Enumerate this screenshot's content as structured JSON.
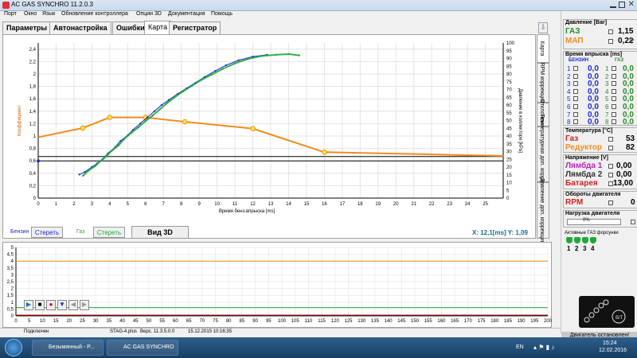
{
  "window": {
    "title": "AC GAS SYNCHRO  11.2.0.3"
  },
  "menu": [
    "Порт",
    "Окно",
    "Язык",
    "Обновление контроллера",
    "Опции 3D",
    "Документация",
    "Помощь"
  ],
  "tabs": [
    "Параметры",
    "Автонастройка",
    "Ошибки",
    "Карта",
    "Регистратор"
  ],
  "side_tabs": [
    "Карта",
    "RPM коррекция",
    "Отклонение",
    "Температурная доп. коррекция",
    "Давление доп. коррекции"
  ],
  "chart_toolbar": {
    "petrol_label": "Бензин",
    "petrol_clear": "Стереть",
    "gas_label": "Газ",
    "gas_clear": "Стереть",
    "view3d": "Вид 3D",
    "readout": "X: 12,1[ms]  Y: 1,09"
  },
  "chart_data": {
    "type": "scatter",
    "xlabel": "Время бенз.впрыска [ms]",
    "ylabel_left": "Коэффициент",
    "ylabel_right": "Давление в коллекторе [kPa]",
    "xlim": [
      0,
      26
    ],
    "ylim_left": [
      0,
      2.5
    ],
    "ylim_right": [
      0,
      100
    ],
    "x_ticks": [
      "0",
      "1",
      "2",
      "3",
      "4",
      "5",
      "6",
      "7",
      "8",
      "9",
      "10",
      "11",
      "12",
      "13",
      "14",
      "15",
      "16",
      "17",
      "18",
      "19",
      "20",
      "21",
      "22",
      "23",
      "24",
      "25"
    ],
    "y_left_ticks": [
      "0",
      "0,2",
      "0,4",
      "0,6",
      "0,8",
      "1",
      "1,2",
      "1,4",
      "1,6",
      "1,8",
      "2",
      "2,2",
      "2,4"
    ],
    "y_right_ticks": [
      "0",
      "5",
      "10",
      "15",
      "20",
      "25",
      "30",
      "35",
      "40",
      "45",
      "50",
      "55",
      "60",
      "65",
      "70",
      "75",
      "80",
      "85",
      "90",
      "95",
      "100"
    ],
    "series": [
      {
        "type": "line",
        "color": "#f28c1e",
        "points": [
          [
            0,
            0.98
          ],
          [
            2.5,
            1.13
          ],
          [
            4,
            1.3
          ],
          [
            6,
            1.3
          ],
          [
            8.2,
            1.23
          ],
          [
            12,
            1.12
          ],
          [
            16,
            0.74
          ],
          [
            26,
            0.68
          ]
        ]
      },
      {
        "type": "scatter",
        "color": "#1a2bd0",
        "points": [
          [
            2.3,
            0.38
          ],
          [
            2.6,
            0.42
          ],
          [
            3.0,
            0.5
          ],
          [
            3.3,
            0.56
          ],
          [
            3.6,
            0.63
          ],
          [
            3.9,
            0.72
          ],
          [
            4.3,
            0.82
          ],
          [
            4.6,
            0.92
          ],
          [
            5.0,
            1.01
          ],
          [
            5.3,
            1.1
          ],
          [
            5.7,
            1.2
          ],
          [
            6.1,
            1.3
          ],
          [
            6.5,
            1.4
          ],
          [
            6.9,
            1.5
          ],
          [
            7.3,
            1.58
          ],
          [
            7.8,
            1.68
          ],
          [
            8.3,
            1.77
          ],
          [
            8.8,
            1.86
          ],
          [
            9.3,
            1.95
          ],
          [
            9.9,
            2.05
          ],
          [
            10.5,
            2.14
          ],
          [
            11.2,
            2.22
          ],
          [
            12.0,
            2.28
          ],
          [
            12.8,
            2.31
          ]
        ]
      },
      {
        "type": "scatter",
        "color": "#1fa83a",
        "points": [
          [
            2.5,
            0.36
          ],
          [
            2.8,
            0.44
          ],
          [
            3.2,
            0.52
          ],
          [
            3.5,
            0.6
          ],
          [
            3.8,
            0.67
          ],
          [
            4.1,
            0.76
          ],
          [
            4.5,
            0.85
          ],
          [
            4.8,
            0.95
          ],
          [
            5.2,
            1.05
          ],
          [
            5.6,
            1.14
          ],
          [
            6.0,
            1.24
          ],
          [
            6.4,
            1.33
          ],
          [
            6.8,
            1.43
          ],
          [
            7.2,
            1.53
          ],
          [
            7.6,
            1.62
          ],
          [
            8.1,
            1.72
          ],
          [
            8.6,
            1.81
          ],
          [
            9.1,
            1.9
          ],
          [
            9.7,
            1.99
          ],
          [
            10.3,
            2.08
          ],
          [
            11.0,
            2.17
          ],
          [
            11.7,
            2.24
          ],
          [
            12.5,
            2.29
          ],
          [
            13.3,
            2.31
          ],
          [
            14.0,
            2.32
          ],
          [
            14.6,
            2.3
          ]
        ]
      }
    ],
    "reference_lines_left": [
      0.6,
      0.67
    ]
  },
  "lower_chart": {
    "x_ticks": [
      "0",
      "5",
      "10",
      "15",
      "20",
      "25",
      "30",
      "35",
      "40",
      "45",
      "50",
      "55",
      "60",
      "65",
      "70",
      "75",
      "80",
      "85",
      "90",
      "95",
      "100",
      "105",
      "110",
      "115",
      "120",
      "125",
      "130",
      "135",
      "140",
      "145",
      "150",
      "155",
      "160",
      "165",
      "170",
      "175",
      "180",
      "185",
      "190",
      "195",
      "200"
    ],
    "y_ticks": [
      "0",
      "0,5",
      "1",
      "1,5",
      "2",
      "2,5",
      "3",
      "3,5",
      "4",
      "4,5",
      "5"
    ],
    "player_icons": [
      "play-icon",
      "stop-icon",
      "record-icon",
      "filter-icon",
      "prev-icon",
      "next-icon"
    ]
  },
  "side": {
    "pressure": {
      "title": "Давление [Bar]",
      "gas_label": "ГАЗ",
      "gas_value": "1,15",
      "map_label": "МАП",
      "map_value": "0,22"
    },
    "injection": {
      "title": "Время впрыска [ms]",
      "petrol_header": "БЕНЗИН",
      "gas_header": "ГАЗ",
      "rows": [
        {
          "n": "1",
          "petrol": "0,0",
          "gas": "0,0"
        },
        {
          "n": "2",
          "petrol": "0,0",
          "gas": "0,0"
        },
        {
          "n": "3",
          "petrol": "0,0",
          "gas": "0,0"
        },
        {
          "n": "4",
          "petrol": "0,0",
          "gas": "0,0"
        },
        {
          "n": "5",
          "petrol": "0,0",
          "gas": "0,0"
        },
        {
          "n": "6",
          "petrol": "0,0",
          "gas": "0,0"
        },
        {
          "n": "7",
          "petrol": "0,0",
          "gas": "0,0"
        },
        {
          "n": "8",
          "petrol": "0,0",
          "gas": "0,0"
        }
      ]
    },
    "temperature": {
      "title": "Температура [°C]",
      "gas_label": "Газ",
      "gas_value": "53",
      "reducer_label": "Редуктор",
      "reducer_value": "82"
    },
    "voltage": {
      "title": "Напряжение [V]",
      "l1_label": "Лямбда 1",
      "l1_value": "0,00",
      "l2_label": "Лямбда 2",
      "l2_value": "0,00",
      "bat_label": "Батарея",
      "bat_value": "13,00"
    },
    "rpm": {
      "title": "Обороты двигателя",
      "label": "RPM",
      "value": "0"
    },
    "load": {
      "title": "Нагрузка двигателя",
      "value": "0%"
    },
    "injectors": {
      "title": "Активные ГАЗ форсунки",
      "labels": [
        "1",
        "2",
        "3",
        "4"
      ]
    },
    "engine_status": "Двигатель остановлен!"
  },
  "status": {
    "port": "Подключен",
    "file": "STAG-4.plus",
    "version": "Верс. 11.3.5.0.0",
    "date": "15.12.2015 10:16:35"
  },
  "taskbar": {
    "items": [
      "Безымянный - P...",
      "AC GAS SYNCHRO"
    ],
    "lang": "EN",
    "time": "15:24",
    "date": "12.02.2016"
  },
  "colors": {
    "petrol_curve": "#1a2bd0",
    "gas_curve": "#1fa83a",
    "correction": "#f28c1e",
    "gas_label": "#2a8a2a",
    "red_label": "#d42020",
    "lambda": "#c020c0",
    "accent": "#3b82c4"
  }
}
